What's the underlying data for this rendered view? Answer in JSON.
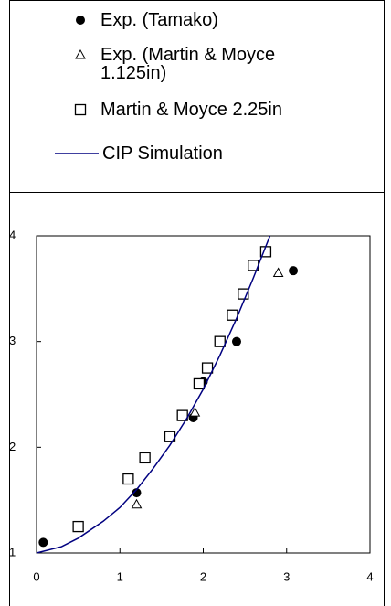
{
  "chart_data": {
    "type": "scatter",
    "xlim": [
      0,
      4
    ],
    "xticks": [
      0,
      1,
      2,
      3,
      4
    ],
    "ylim": [
      1,
      4
    ],
    "yticks": [
      1,
      2,
      3,
      4
    ],
    "series": [
      {
        "name": "Exp. (Tamako)",
        "marker": "circle",
        "color": "#000000",
        "x": [
          0.08,
          1.2,
          1.88,
          2.0,
          2.4,
          3.08
        ],
        "values": [
          1.1,
          1.57,
          2.28,
          2.62,
          3.0,
          3.67
        ]
      },
      {
        "name": "Exp. (Martin & Moyce 1.125in)",
        "marker": "triangle",
        "color": "#000000",
        "x": [
          1.2,
          1.9,
          2.9
        ],
        "values": [
          1.46,
          2.33,
          3.65
        ]
      },
      {
        "name": "Martin & Moyce 2.25in",
        "marker": "square",
        "color": "#000000",
        "x": [
          0.5,
          1.1,
          1.3,
          1.6,
          1.75,
          1.95,
          2.05,
          2.2,
          2.35,
          2.48,
          2.6,
          2.75
        ],
        "values": [
          1.25,
          1.7,
          1.9,
          2.1,
          2.3,
          2.6,
          2.75,
          3.0,
          3.25,
          3.45,
          3.72,
          3.85
        ]
      },
      {
        "name": "CIP Simulation",
        "marker": "line",
        "color": "#000080",
        "x": [
          0,
          0.3,
          0.5,
          0.8,
          1.0,
          1.2,
          1.4,
          1.6,
          1.8,
          2.0,
          2.2,
          2.4,
          2.6,
          2.8
        ],
        "values": [
          1.0,
          1.06,
          1.14,
          1.3,
          1.43,
          1.6,
          1.8,
          2.02,
          2.27,
          2.55,
          2.87,
          3.22,
          3.6,
          4.0
        ]
      }
    ]
  }
}
